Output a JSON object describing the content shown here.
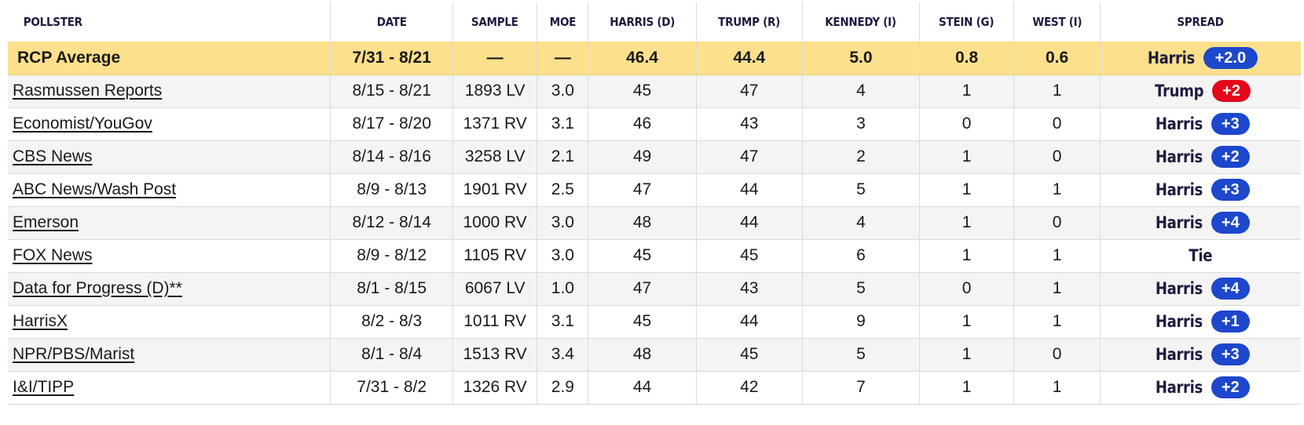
{
  "columns": [
    "POLLSTER",
    "DATE",
    "SAMPLE",
    "MOE",
    "HARRIS (D)",
    "TRUMP (R)",
    "KENNEDY (I)",
    "STEIN (G)",
    "WEST (I)",
    "SPREAD"
  ],
  "average": {
    "pollster": "RCP Average",
    "date": "7/31 - 8/21",
    "sample": "—",
    "moe": "—",
    "harris": "46.4",
    "trump": "44.4",
    "kennedy": "5.0",
    "stein": "0.8",
    "west": "0.6",
    "spread_name": "Harris",
    "spread_value": "+2.0",
    "spread_party": "dem"
  },
  "rows": [
    {
      "pollster": "Rasmussen Reports",
      "date": "8/15 - 8/21",
      "sample": "1893 LV",
      "moe": "3.0",
      "harris": "45",
      "trump": "47",
      "kennedy": "4",
      "stein": "1",
      "west": "1",
      "spread_name": "Trump",
      "spread_value": "+2",
      "spread_party": "rep"
    },
    {
      "pollster": "Economist/YouGov",
      "date": "8/17 - 8/20",
      "sample": "1371 RV",
      "moe": "3.1",
      "harris": "46",
      "trump": "43",
      "kennedy": "3",
      "stein": "0",
      "west": "0",
      "spread_name": "Harris",
      "spread_value": "+3",
      "spread_party": "dem"
    },
    {
      "pollster": "CBS News",
      "date": "8/14 - 8/16",
      "sample": "3258 LV",
      "moe": "2.1",
      "harris": "49",
      "trump": "47",
      "kennedy": "2",
      "stein": "1",
      "west": "0",
      "spread_name": "Harris",
      "spread_value": "+2",
      "spread_party": "dem"
    },
    {
      "pollster": "ABC News/Wash Post",
      "date": "8/9 - 8/13",
      "sample": "1901 RV",
      "moe": "2.5",
      "harris": "47",
      "trump": "44",
      "kennedy": "5",
      "stein": "1",
      "west": "1",
      "spread_name": "Harris",
      "spread_value": "+3",
      "spread_party": "dem"
    },
    {
      "pollster": "Emerson",
      "date": "8/12 - 8/14",
      "sample": "1000 RV",
      "moe": "3.0",
      "harris": "48",
      "trump": "44",
      "kennedy": "4",
      "stein": "1",
      "west": "0",
      "spread_name": "Harris",
      "spread_value": "+4",
      "spread_party": "dem"
    },
    {
      "pollster": "FOX News",
      "date": "8/9 - 8/12",
      "sample": "1105 RV",
      "moe": "3.0",
      "harris": "45",
      "trump": "45",
      "kennedy": "6",
      "stein": "1",
      "west": "1",
      "spread_name": "Tie",
      "spread_value": "",
      "spread_party": ""
    },
    {
      "pollster": "Data for Progress (D)**",
      "date": "8/1 - 8/15",
      "sample": "6067 LV",
      "moe": "1.0",
      "harris": "47",
      "trump": "43",
      "kennedy": "5",
      "stein": "0",
      "west": "1",
      "spread_name": "Harris",
      "spread_value": "+4",
      "spread_party": "dem"
    },
    {
      "pollster": "HarrisX",
      "date": "8/2 - 8/3",
      "sample": "1011 RV",
      "moe": "3.1",
      "harris": "45",
      "trump": "44",
      "kennedy": "9",
      "stein": "1",
      "west": "1",
      "spread_name": "Harris",
      "spread_value": "+1",
      "spread_party": "dem"
    },
    {
      "pollster": "NPR/PBS/Marist",
      "date": "8/1 - 8/4",
      "sample": "1513 RV",
      "moe": "3.4",
      "harris": "48",
      "trump": "45",
      "kennedy": "5",
      "stein": "1",
      "west": "0",
      "spread_name": "Harris",
      "spread_value": "+3",
      "spread_party": "dem"
    },
    {
      "pollster": "I&I/TIPP",
      "date": "7/31 - 8/2",
      "sample": "1326 RV",
      "moe": "2.9",
      "harris": "44",
      "trump": "42",
      "kennedy": "7",
      "stein": "1",
      "west": "1",
      "spread_name": "Harris",
      "spread_value": "+2",
      "spread_party": "dem"
    }
  ],
  "colors": {
    "dem": "#1d47cc",
    "rep": "#e3091a",
    "average_bg": "#fde08c",
    "header_text": "#1e1a40"
  }
}
